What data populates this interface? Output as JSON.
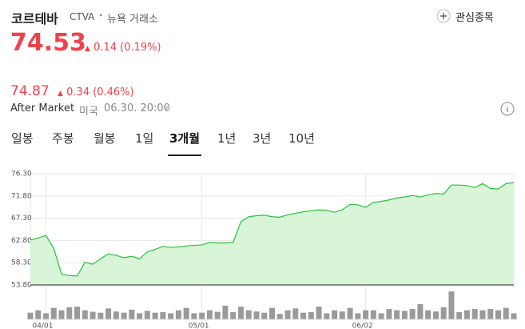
{
  "header": {
    "name": "코르테바",
    "ticker": "CTVA",
    "separator": "•",
    "exchange": "뉴욕 거래소",
    "watch_button": "관심종목"
  },
  "price": {
    "value": "74.53",
    "change": "0.14 (0.19%)"
  },
  "after_market": {
    "value": "74.87",
    "change": "0.34 (0.46%)",
    "label": "After Market",
    "country": "미국",
    "time": "06.30. 20:00"
  },
  "tabs": {
    "items": [
      "일봉",
      "주봉",
      "월봉",
      "1일",
      "3개월",
      "1년",
      "3년",
      "10년"
    ],
    "selected": 4
  },
  "chart_data": {
    "type": "area",
    "color": "#27c03b",
    "fill": "#d8f5d8",
    "x": [
      null,
      null,
      "04/01",
      null,
      null,
      null,
      null,
      null,
      null,
      null,
      null,
      null,
      null,
      null,
      null,
      null,
      null,
      null,
      null,
      null,
      null,
      null,
      "05/01",
      null,
      null,
      null,
      null,
      null,
      null,
      null,
      null,
      null,
      null,
      null,
      null,
      null,
      null,
      null,
      null,
      null,
      null,
      null,
      null,
      "06/02",
      null,
      null,
      null,
      null,
      null,
      null,
      null,
      null,
      null,
      null,
      null,
      null,
      null,
      null,
      null,
      null,
      null,
      null,
      null
    ],
    "values": [
      62.9,
      63.3,
      63.8,
      61.2,
      56.0,
      55.7,
      55.6,
      58.4,
      58.0,
      59.1,
      60.1,
      59.8,
      59.3,
      59.6,
      59.1,
      60.5,
      61.0,
      61.6,
      61.4,
      61.5,
      61.7,
      61.8,
      61.9,
      62.4,
      62.3,
      62.3,
      62.4,
      66.6,
      67.6,
      67.8,
      67.9,
      67.6,
      67.5,
      68.0,
      68.3,
      68.6,
      68.8,
      69.0,
      68.9,
      68.5,
      69.0,
      70.1,
      70.0,
      69.5,
      70.5,
      70.7,
      71.0,
      71.4,
      71.6,
      71.9,
      71.6,
      72.0,
      72.3,
      72.2,
      74.0,
      74.0,
      73.9,
      73.5,
      74.3,
      73.3,
      73.2,
      74.3,
      74.5
    ],
    "ylim": [
      53.8,
      76.3
    ],
    "yticks": [
      {
        "value": 53.8,
        "label": "53.80"
      },
      {
        "value": 58.3,
        "label": "58.30"
      },
      {
        "value": 62.8,
        "label": "62.80"
      },
      {
        "value": 67.3,
        "label": "67.30"
      },
      {
        "value": 71.8,
        "label": "71.80"
      },
      {
        "value": 76.3,
        "label": "76.30"
      }
    ],
    "grid": true,
    "volume": {
      "color": "#9a9a9a",
      "lim": [
        0,
        100
      ],
      "values": [
        22,
        30,
        20,
        38,
        30,
        40,
        42,
        30,
        25,
        22,
        36,
        26,
        22,
        32,
        20,
        28,
        22,
        24,
        20,
        30,
        38,
        20,
        22,
        30,
        25,
        45,
        24,
        42,
        30,
        26,
        22,
        38,
        18,
        30,
        36,
        22,
        24,
        42,
        20,
        30,
        26,
        38,
        20,
        30,
        30,
        20,
        34,
        30,
        28,
        34,
        50,
        30,
        26,
        40,
        92,
        24,
        30,
        34,
        30,
        34,
        30,
        38,
        20
      ]
    }
  }
}
